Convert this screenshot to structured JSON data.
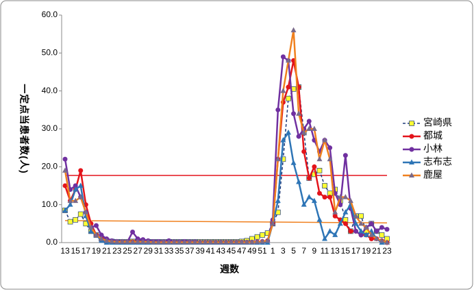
{
  "chart_data": {
    "type": "line",
    "x_label": "週数",
    "y_label": "一定点当患者数(人)",
    "categories": [
      "13",
      null,
      "15",
      null,
      "17",
      null,
      "19",
      null,
      "21",
      null,
      "23",
      null,
      "25",
      null,
      "27",
      null,
      "29",
      null,
      "31",
      null,
      "33",
      null,
      "35",
      null,
      "37",
      null,
      "39",
      null,
      "41",
      null,
      "43",
      null,
      "45",
      null,
      "47",
      null,
      "49",
      null,
      "51",
      null,
      "1",
      null,
      "3",
      null,
      "5",
      null,
      "7",
      null,
      "9",
      null,
      "11",
      null,
      "13",
      null,
      "15",
      null,
      "17",
      null,
      "19",
      null,
      "21",
      null,
      "23"
    ],
    "ylim": [
      0,
      60
    ],
    "yticks": [
      {
        "value": 0,
        "label": "0.0"
      },
      {
        "value": 10,
        "label": "10.0"
      },
      {
        "value": 20,
        "label": "20.0"
      },
      {
        "value": 30,
        "label": "30.0"
      },
      {
        "value": 40,
        "label": "40.0"
      },
      {
        "value": 50,
        "label": "50.0"
      },
      {
        "value": 60,
        "label": "60.0"
      }
    ],
    "legend": "right",
    "series": [
      {
        "name": "宮崎県",
        "color": "#1f3a7a",
        "dash": true,
        "marker": "square",
        "marker_color": "#ffff33",
        "values": [
          8.5,
          5.5,
          6,
          7.5,
          5,
          3,
          2,
          1,
          0.5,
          0.3,
          0.2,
          0.2,
          0.2,
          0.3,
          0.3,
          0.2,
          0.2,
          0.2,
          0.2,
          0.2,
          0.2,
          0.2,
          0.2,
          0.2,
          0.2,
          0.2,
          0.2,
          0.2,
          0.2,
          0.2,
          0.2,
          0.2,
          0.2,
          0.2,
          0.3,
          0.5,
          1,
          1.5,
          2,
          2.5,
          5,
          8,
          22,
          38,
          40.5,
          41,
          29,
          17,
          18,
          19,
          15,
          13,
          14,
          11,
          6,
          3,
          7,
          7,
          3,
          5,
          3,
          2,
          1
        ]
      },
      {
        "name": "都城",
        "color": "#e3141b",
        "dash": false,
        "marker": "circle",
        "marker_color": "#e3141b",
        "values": [
          15,
          11,
          14,
          19,
          10,
          5,
          2,
          1,
          0.5,
          0.3,
          0.2,
          0.2,
          0.2,
          0.2,
          0.2,
          0.1,
          0.1,
          0.1,
          0.1,
          0.1,
          0.1,
          0.1,
          0.1,
          0.1,
          0.1,
          0.1,
          0.1,
          0.1,
          0.1,
          0.1,
          0.1,
          0.1,
          0.1,
          0.1,
          0.1,
          0.1,
          0.1,
          0.2,
          0.3,
          0.5,
          5,
          22,
          37,
          41,
          48,
          41,
          24,
          17,
          20,
          13,
          12,
          12,
          7,
          6,
          5,
          3,
          3,
          2,
          2,
          1,
          1,
          0.5,
          0
        ]
      },
      {
        "name": "小林",
        "color": "#7030a0",
        "dash": false,
        "marker": "circle",
        "marker_color": "#7030a0",
        "values": [
          22,
          14,
          15,
          12,
          8,
          4,
          4.5,
          2,
          1,
          0.5,
          0.3,
          0.2,
          0.2,
          2.8,
          1,
          0.8,
          0.5,
          0.3,
          0.3,
          0.2,
          0.5,
          0.2,
          0.2,
          0.3,
          0.2,
          0.2,
          0.1,
          0.1,
          0.1,
          0.1,
          0.1,
          0.1,
          0.1,
          0.1,
          0.1,
          0.1,
          0.1,
          0.1,
          0.2,
          0.3,
          6,
          35,
          49,
          48,
          34,
          28,
          30,
          32,
          27,
          24,
          27,
          25,
          13,
          10,
          23,
          9,
          3,
          2,
          4,
          5,
          3,
          4,
          3.5
        ]
      },
      {
        "name": "志布志",
        "color": "#2e75b6",
        "dash": false,
        "marker": "triangle",
        "marker_color": "#2e75b6",
        "values": [
          8.5,
          10,
          14,
          15,
          7,
          3,
          2,
          0.5,
          0,
          0,
          0,
          0,
          0,
          0,
          0,
          0,
          0,
          0,
          0,
          0,
          0,
          0,
          0,
          0,
          0,
          0,
          0,
          0,
          0,
          0,
          0,
          0,
          0,
          0,
          0,
          0,
          0,
          0,
          0,
          0,
          5,
          11,
          27,
          29,
          21,
          16,
          10,
          12,
          11,
          6,
          1,
          3,
          2,
          5,
          8,
          10,
          5,
          3,
          2,
          3,
          1,
          0,
          0
        ]
      },
      {
        "name": "鹿屋",
        "color": "#f0801e",
        "dash": false,
        "marker": "triangle",
        "marker_color": "#7a6a8a",
        "values": [
          19,
          11,
          11,
          12,
          8,
          4,
          2,
          1,
          0.5,
          0.3,
          0.2,
          0.2,
          0.2,
          0.2,
          0.2,
          0.2,
          0.2,
          0.1,
          0.1,
          0.1,
          0.1,
          0.1,
          0.1,
          0.1,
          0.1,
          0.1,
          0.1,
          0.1,
          0.1,
          0.1,
          0.1,
          0.1,
          0.1,
          0.1,
          0.1,
          0.1,
          0.1,
          0.2,
          0.3,
          0.5,
          5,
          22,
          40,
          48,
          56,
          34,
          29,
          30,
          30,
          22,
          27,
          22,
          8,
          12,
          12,
          11,
          7,
          5,
          4,
          2,
          1,
          0.5,
          0
        ]
      }
    ],
    "threshold_lines": [
      {
        "color": "#e3141b",
        "values": [
          17.7,
          17.7
        ]
      },
      {
        "color": "#f0801e",
        "values": [
          5.8,
          5.2
        ]
      }
    ]
  }
}
